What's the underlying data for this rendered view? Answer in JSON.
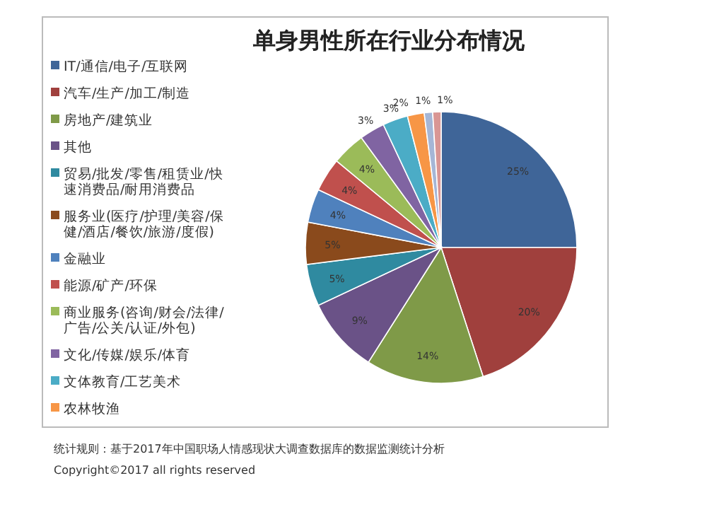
{
  "chart_data": {
    "type": "pie",
    "title": "单身男性所在行业分布情况",
    "categories": [
      "IT/通信/电子/互联网",
      "汽车/生产/加工/制造",
      "房地产/建筑业",
      "其他",
      "贸易/批发/零售/租赁业/快速消费品/耐用消费品",
      "服务业(医疗/护理/美容/保健/酒店/餐饮/旅游/度假)",
      "金融业",
      "能源/矿产/环保",
      "商业服务(咨询/财会/法律/广告/公关/认证/外包)",
      "文化/传媒/娱乐/体育",
      "文体教育/工艺美术",
      "农林牧渔",
      null,
      null
    ],
    "values": [
      25,
      20,
      14,
      9,
      5,
      5,
      4,
      4,
      4,
      3,
      3,
      2,
      1,
      1
    ],
    "colors": [
      "#3f6598",
      "#a0403d",
      "#7f9a48",
      "#6a5287",
      "#2f8aa0",
      "#8a4a1c",
      "#4f81bd",
      "#c0504d",
      "#9bbb59",
      "#8064a2",
      "#4bacc6",
      "#f79646",
      "#a5b6d6",
      "#d99694"
    ],
    "value_labels": [
      "25%",
      "20%",
      "14%",
      "9%",
      "5%",
      "5%",
      "4%",
      "4%",
      "4%",
      "3%",
      "3%",
      "2%",
      "1%",
      "1%"
    ],
    "legend": "left",
    "annotations": [
      "统计规则：基于2017年中国职场人情感现状大调查数据库的数据监测统计分析",
      "Copyright©2017 all rights reserved"
    ]
  }
}
